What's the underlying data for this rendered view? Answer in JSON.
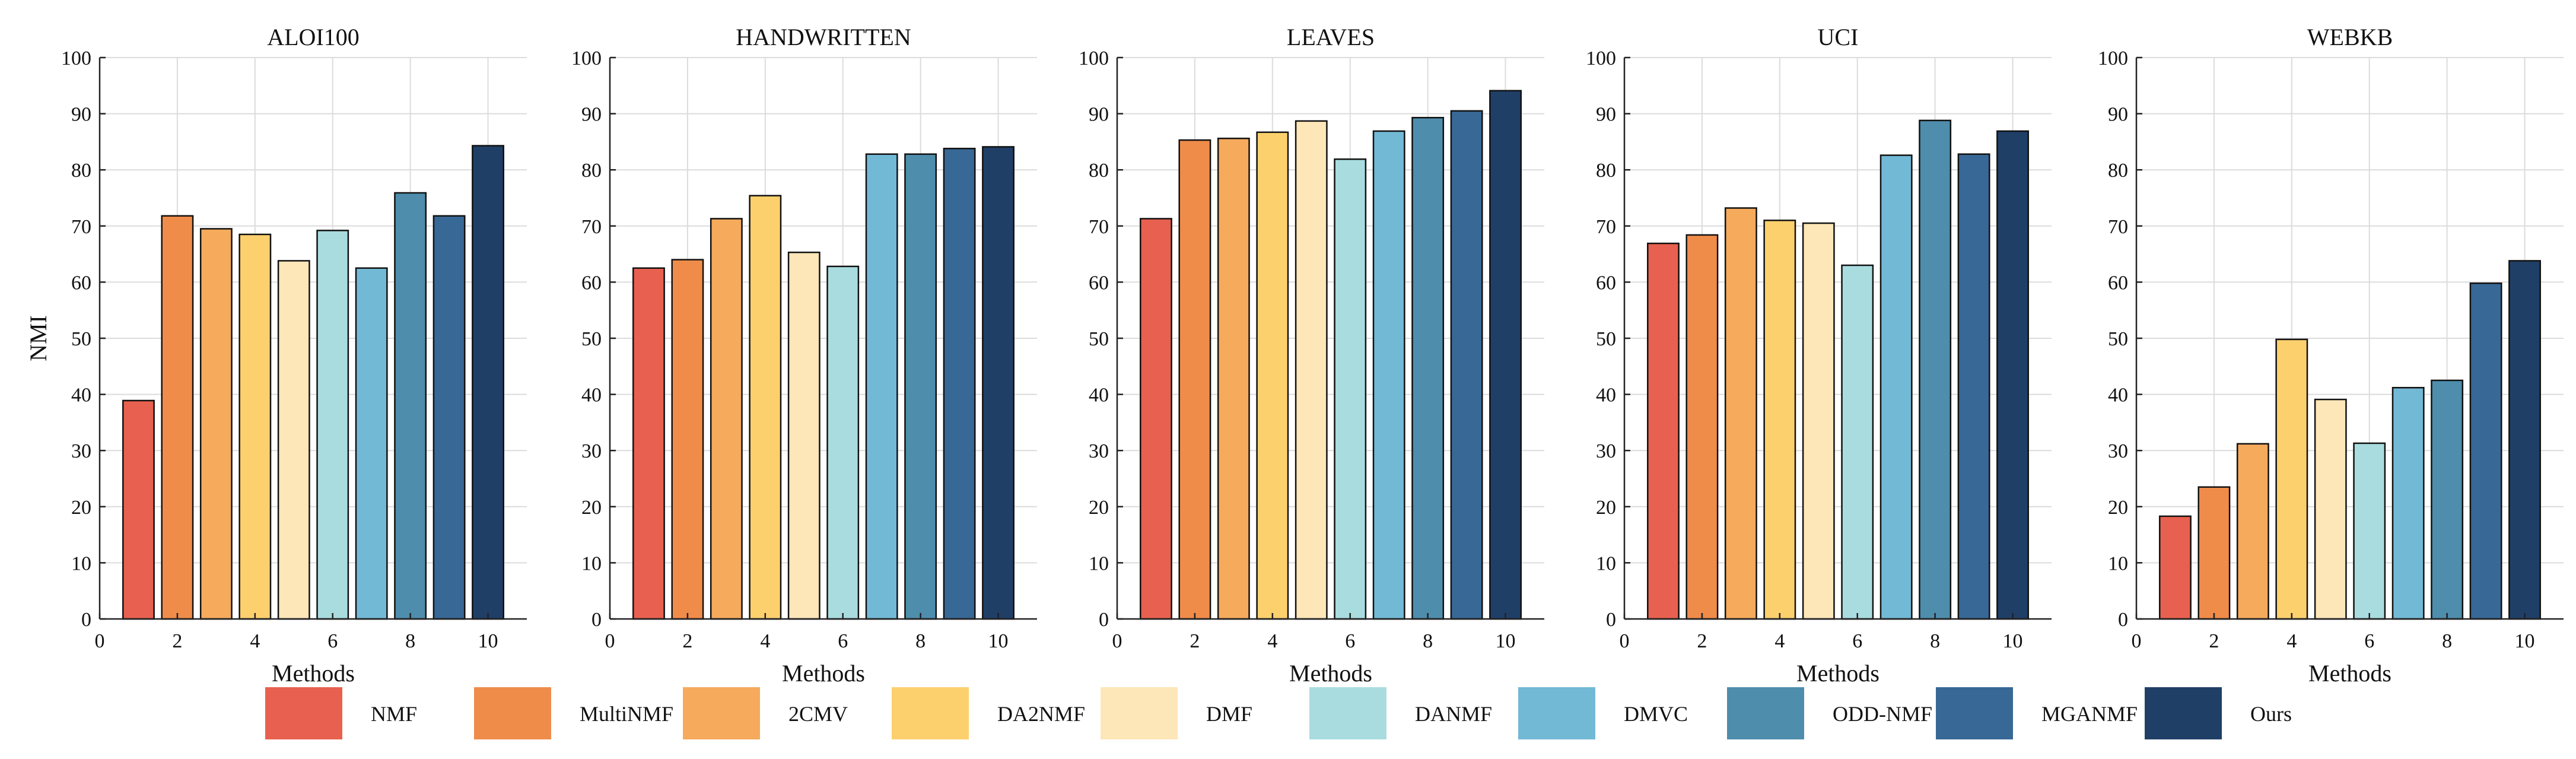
{
  "chart_data": [
    {
      "type": "bar",
      "title": "ALOI100",
      "xlabel": "Methods",
      "ylabel": "NMI",
      "x": [
        1,
        2,
        3,
        4,
        5,
        6,
        7,
        8,
        9,
        10
      ],
      "values": [
        38.9,
        71.8,
        69.5,
        68.5,
        63.8,
        69.2,
        62.5,
        75.9,
        71.8,
        84.3
      ],
      "xlim": [
        0,
        11
      ],
      "ylim": [
        0,
        100
      ],
      "xticks": [
        0,
        2,
        4,
        6,
        8,
        10
      ],
      "yticks": [
        0,
        10,
        20,
        30,
        40,
        50,
        60,
        70,
        80,
        90,
        100
      ],
      "grid": true
    },
    {
      "type": "bar",
      "title": "HANDWRITTEN",
      "xlabel": "Methods",
      "ylabel": "",
      "x": [
        1,
        2,
        3,
        4,
        5,
        6,
        7,
        8,
        9,
        10
      ],
      "values": [
        62.5,
        64.0,
        71.3,
        75.4,
        65.3,
        62.8,
        82.8,
        82.8,
        83.8,
        84.1
      ],
      "xlim": [
        0,
        11
      ],
      "ylim": [
        0,
        100
      ],
      "xticks": [
        0,
        2,
        4,
        6,
        8,
        10
      ],
      "yticks": [
        0,
        10,
        20,
        30,
        40,
        50,
        60,
        70,
        80,
        90,
        100
      ],
      "grid": true
    },
    {
      "type": "bar",
      "title": "LEAVES",
      "xlabel": "Methods",
      "ylabel": "",
      "x": [
        1,
        2,
        3,
        4,
        5,
        6,
        7,
        8,
        9,
        10
      ],
      "values": [
        71.3,
        85.3,
        85.6,
        86.7,
        88.7,
        81.9,
        86.9,
        89.3,
        90.5,
        94.1
      ],
      "xlim": [
        0,
        11
      ],
      "ylim": [
        0,
        100
      ],
      "xticks": [
        0,
        2,
        4,
        6,
        8,
        10
      ],
      "yticks": [
        0,
        10,
        20,
        30,
        40,
        50,
        60,
        70,
        80,
        90,
        100
      ],
      "grid": true
    },
    {
      "type": "bar",
      "title": "UCI",
      "xlabel": "Methods",
      "ylabel": "",
      "x": [
        1,
        2,
        3,
        4,
        5,
        6,
        7,
        8,
        9,
        10
      ],
      "values": [
        66.9,
        68.4,
        73.2,
        71.0,
        70.5,
        63.0,
        82.6,
        88.8,
        82.8,
        86.9
      ],
      "xlim": [
        0,
        11
      ],
      "ylim": [
        0,
        100
      ],
      "xticks": [
        0,
        2,
        4,
        6,
        8,
        10
      ],
      "yticks": [
        0,
        10,
        20,
        30,
        40,
        50,
        60,
        70,
        80,
        90,
        100
      ],
      "grid": true
    },
    {
      "type": "bar",
      "title": "WEBKB",
      "xlabel": "Methods",
      "ylabel": "",
      "x": [
        1,
        2,
        3,
        4,
        5,
        6,
        7,
        8,
        9,
        10
      ],
      "values": [
        18.3,
        23.5,
        31.2,
        49.8,
        39.1,
        31.3,
        41.2,
        42.5,
        59.8,
        63.8
      ],
      "xlim": [
        0,
        11
      ],
      "ylim": [
        0,
        100
      ],
      "xticks": [
        0,
        2,
        4,
        6,
        8,
        10
      ],
      "yticks": [
        0,
        10,
        20,
        30,
        40,
        50,
        60,
        70,
        80,
        90,
        100
      ],
      "grid": true
    }
  ],
  "legend": {
    "position": "bottom",
    "entries": [
      {
        "label": "NMF",
        "color": "#e8604f"
      },
      {
        "label": "MultiNMF",
        "color": "#ef8c4a"
      },
      {
        "label": "2CMV",
        "color": "#f5aa5c"
      },
      {
        "label": "DA2NMF",
        "color": "#fdd06e"
      },
      {
        "label": "DMF",
        "color": "#fde6b8"
      },
      {
        "label": "DANMF",
        "color": "#a9dcdf"
      },
      {
        "label": "DMVC",
        "color": "#72b9d5"
      },
      {
        "label": "ODD-NMF",
        "color": "#4e8dac"
      },
      {
        "label": "MGANMF",
        "color": "#386895"
      },
      {
        "label": "Ours",
        "color": "#1f3f67"
      }
    ]
  },
  "colors": {
    "grid": "#dcdcdc",
    "axis": "#222222",
    "bar_edge": "#111111"
  }
}
